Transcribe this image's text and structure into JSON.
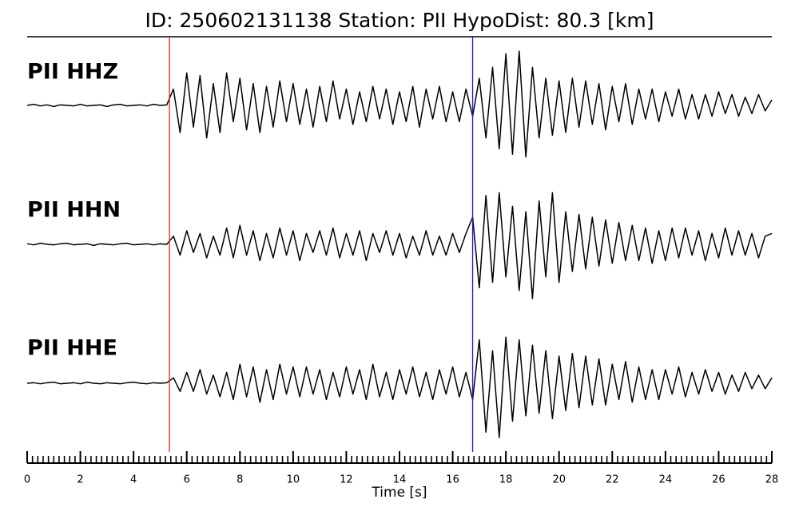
{
  "chart_data": {
    "type": "line",
    "title": "ID: 250602131138   Station: PII   HypoDist:    80.3 [km]",
    "xlabel": "Time [s]",
    "label_color": "#4c9a0a",
    "xlim": [
      0,
      28
    ],
    "xticks": [
      0,
      2,
      4,
      6,
      8,
      10,
      12,
      14,
      16,
      18,
      20,
      22,
      24,
      26,
      28
    ],
    "xminorticks": [
      0,
      0.2,
      0.4,
      0.6,
      0.8,
      1,
      1.2,
      1.4,
      1.6,
      1.8,
      2,
      2.2,
      2.4,
      2.6,
      2.8,
      3,
      3.2,
      3.4,
      3.6,
      3.8,
      4,
      4.2,
      4.4,
      4.6,
      4.8,
      5,
      5.2,
      5.4,
      5.6,
      5.8,
      6,
      6.2,
      6.4,
      6.6,
      6.8,
      7,
      7.2,
      7.4,
      7.6,
      7.8,
      8,
      8.2,
      8.4,
      8.6,
      8.8,
      9,
      9.2,
      9.4,
      9.6,
      9.8,
      10,
      10.2,
      10.4,
      10.6,
      10.8,
      11,
      11.2,
      11.4,
      11.6,
      11.8,
      12,
      12.2,
      12.4,
      12.6,
      12.8,
      13,
      13.2,
      13.4,
      13.6,
      13.8,
      14,
      14.2,
      14.4,
      14.6,
      14.8,
      15,
      15.2,
      15.4,
      15.6,
      15.8,
      16,
      16.2,
      16.4,
      16.6,
      16.8,
      17,
      17.2,
      17.4,
      17.6,
      17.8,
      18,
      18.2,
      18.4,
      18.6,
      18.8,
      19,
      19.2,
      19.4,
      19.6,
      19.8,
      20,
      20.2,
      20.4,
      20.6,
      20.8,
      21,
      21.2,
      21.4,
      21.6,
      21.8,
      22,
      22.2,
      22.4,
      22.6,
      22.8,
      23,
      23.2,
      23.4,
      23.6,
      23.8,
      24,
      24.2,
      24.4,
      24.6,
      24.8,
      25,
      25.2,
      25.4,
      25.6,
      25.8,
      26,
      26.2,
      26.4,
      26.6,
      26.8,
      27,
      27.2,
      27.4,
      27.6,
      27.8,
      28
    ],
    "ylim": [
      -1,
      1
    ],
    "markers": [
      {
        "x": 5.35,
        "color": "#e8262a"
      },
      {
        "x": 16.75,
        "color": "#1a1adb"
      }
    ],
    "x": [
      0,
      0.25,
      0.5,
      0.75,
      1,
      1.25,
      1.5,
      1.75,
      2,
      2.25,
      2.5,
      2.75,
      3,
      3.25,
      3.5,
      3.75,
      4,
      4.25,
      4.5,
      4.75,
      5,
      5.25,
      5.5,
      5.75,
      6,
      6.25,
      6.5,
      6.75,
      7,
      7.25,
      7.5,
      7.75,
      8,
      8.25,
      8.5,
      8.75,
      9,
      9.25,
      9.5,
      9.75,
      10,
      10.25,
      10.5,
      10.75,
      11,
      11.25,
      11.5,
      11.75,
      12,
      12.25,
      12.5,
      12.75,
      13,
      13.25,
      13.5,
      13.75,
      14,
      14.25,
      14.5,
      14.75,
      15,
      15.25,
      15.5,
      15.75,
      16,
      16.25,
      16.5,
      16.75,
      17,
      17.25,
      17.5,
      17.75,
      18,
      18.25,
      18.5,
      18.75,
      19,
      19.25,
      19.5,
      19.75,
      20,
      20.25,
      20.5,
      20.75,
      21,
      21.25,
      21.5,
      21.75,
      22,
      22.25,
      22.5,
      22.75,
      23,
      23.25,
      23.5,
      23.75,
      24,
      24.25,
      24.5,
      24.75,
      25,
      25.25,
      25.5,
      25.75,
      26,
      26.25,
      26.5,
      26.75,
      27,
      27.25,
      27.5,
      27.75,
      28
    ],
    "series": [
      {
        "name": "PII HHZ",
        "color": "#000000",
        "values": [
          0,
          0.02,
          -0.01,
          0.01,
          -0.02,
          0.01,
          0,
          -0.01,
          0.02,
          -0.01,
          0,
          0.01,
          -0.02,
          0.01,
          0.02,
          -0.01,
          0,
          0.01,
          -0.01,
          0.02,
          0,
          0.01,
          0.3,
          -0.5,
          0.6,
          -0.4,
          0.55,
          -0.6,
          0.4,
          -0.5,
          0.6,
          -0.3,
          0.5,
          -0.45,
          0.4,
          -0.5,
          0.35,
          -0.4,
          0.45,
          -0.3,
          0.4,
          -0.35,
          0.3,
          -0.4,
          0.35,
          -0.3,
          0.45,
          -0.25,
          0.3,
          -0.35,
          0.25,
          -0.3,
          0.35,
          -0.25,
          0.3,
          -0.35,
          0.25,
          -0.3,
          0.35,
          -0.4,
          0.3,
          -0.25,
          0.35,
          -0.3,
          0.25,
          -0.3,
          0.3,
          -0.2,
          0.5,
          -0.6,
          0.7,
          -0.8,
          0.95,
          -0.9,
          1.0,
          -0.95,
          0.7,
          -0.6,
          0.5,
          -0.55,
          0.45,
          -0.5,
          0.5,
          -0.4,
          0.45,
          -0.35,
          0.4,
          -0.45,
          0.35,
          -0.3,
          0.4,
          -0.35,
          0.3,
          -0.25,
          0.3,
          -0.3,
          0.25,
          -0.2,
          0.3,
          -0.25,
          0.2,
          -0.25,
          0.2,
          -0.2,
          0.25,
          -0.15,
          0.2,
          -0.2,
          0.15,
          -0.15,
          0.2,
          -0.1,
          0.1
        ]
      },
      {
        "name": "PII HHN",
        "color": "#000000",
        "values": [
          0.01,
          -0.01,
          0.02,
          0,
          -0.01,
          0.01,
          0.02,
          -0.01,
          0,
          0.01,
          -0.02,
          0.01,
          0,
          -0.01,
          0.01,
          0.02,
          -0.01,
          0,
          0.01,
          -0.01,
          0.01,
          0,
          0.15,
          -0.2,
          0.25,
          -0.15,
          0.2,
          -0.25,
          0.15,
          -0.2,
          0.3,
          -0.25,
          0.35,
          -0.2,
          0.25,
          -0.3,
          0.2,
          -0.25,
          0.3,
          -0.2,
          0.25,
          -0.3,
          0.2,
          -0.15,
          0.25,
          -0.2,
          0.3,
          -0.25,
          0.2,
          -0.2,
          0.25,
          -0.3,
          0.2,
          -0.15,
          0.25,
          -0.2,
          0.2,
          -0.25,
          0.15,
          -0.2,
          0.25,
          -0.2,
          0.15,
          -0.2,
          0.2,
          -0.15,
          0.2,
          0.5,
          -0.8,
          0.9,
          -0.7,
          0.95,
          -0.6,
          0.7,
          -0.85,
          0.6,
          -1.0,
          0.8,
          -0.6,
          0.95,
          -0.7,
          0.6,
          -0.5,
          0.55,
          -0.45,
          0.5,
          -0.4,
          0.45,
          -0.35,
          0.4,
          -0.3,
          0.35,
          -0.3,
          0.3,
          -0.35,
          0.25,
          -0.3,
          0.3,
          -0.25,
          0.3,
          -0.2,
          0.25,
          -0.3,
          0.2,
          -0.25,
          0.3,
          -0.2,
          0.25,
          -0.2,
          0.2,
          -0.25,
          0.15,
          0.2
        ]
      },
      {
        "name": "PII HHE",
        "color": "#000000",
        "values": [
          0,
          0.01,
          -0.01,
          0.01,
          0.02,
          -0.01,
          0,
          0.01,
          -0.01,
          0.02,
          0,
          -0.01,
          0.01,
          0,
          -0.01,
          0.01,
          0.02,
          0,
          -0.01,
          0.01,
          0,
          0.01,
          0.1,
          -0.15,
          0.2,
          -0.15,
          0.25,
          -0.2,
          0.15,
          -0.25,
          0.2,
          -0.3,
          0.35,
          -0.25,
          0.3,
          -0.35,
          0.25,
          -0.3,
          0.35,
          -0.2,
          0.3,
          -0.25,
          0.3,
          -0.2,
          0.25,
          -0.3,
          0.2,
          -0.25,
          0.3,
          -0.2,
          0.25,
          -0.3,
          0.35,
          -0.25,
          0.2,
          -0.3,
          0.25,
          -0.2,
          0.3,
          -0.25,
          0.2,
          -0.3,
          0.25,
          -0.2,
          0.3,
          -0.25,
          0.2,
          -0.3,
          0.8,
          -0.9,
          0.6,
          -1.0,
          0.85,
          -0.7,
          0.8,
          -0.6,
          0.7,
          -0.55,
          0.6,
          -0.65,
          0.5,
          -0.5,
          0.55,
          -0.45,
          0.5,
          -0.4,
          0.45,
          -0.4,
          0.35,
          -0.3,
          0.4,
          -0.35,
          0.3,
          -0.3,
          0.25,
          -0.3,
          0.25,
          -0.2,
          0.3,
          -0.25,
          0.2,
          -0.2,
          0.25,
          -0.15,
          0.2,
          -0.2,
          0.15,
          -0.15,
          0.2,
          -0.1,
          0.15,
          -0.1,
          0.1
        ]
      }
    ]
  }
}
